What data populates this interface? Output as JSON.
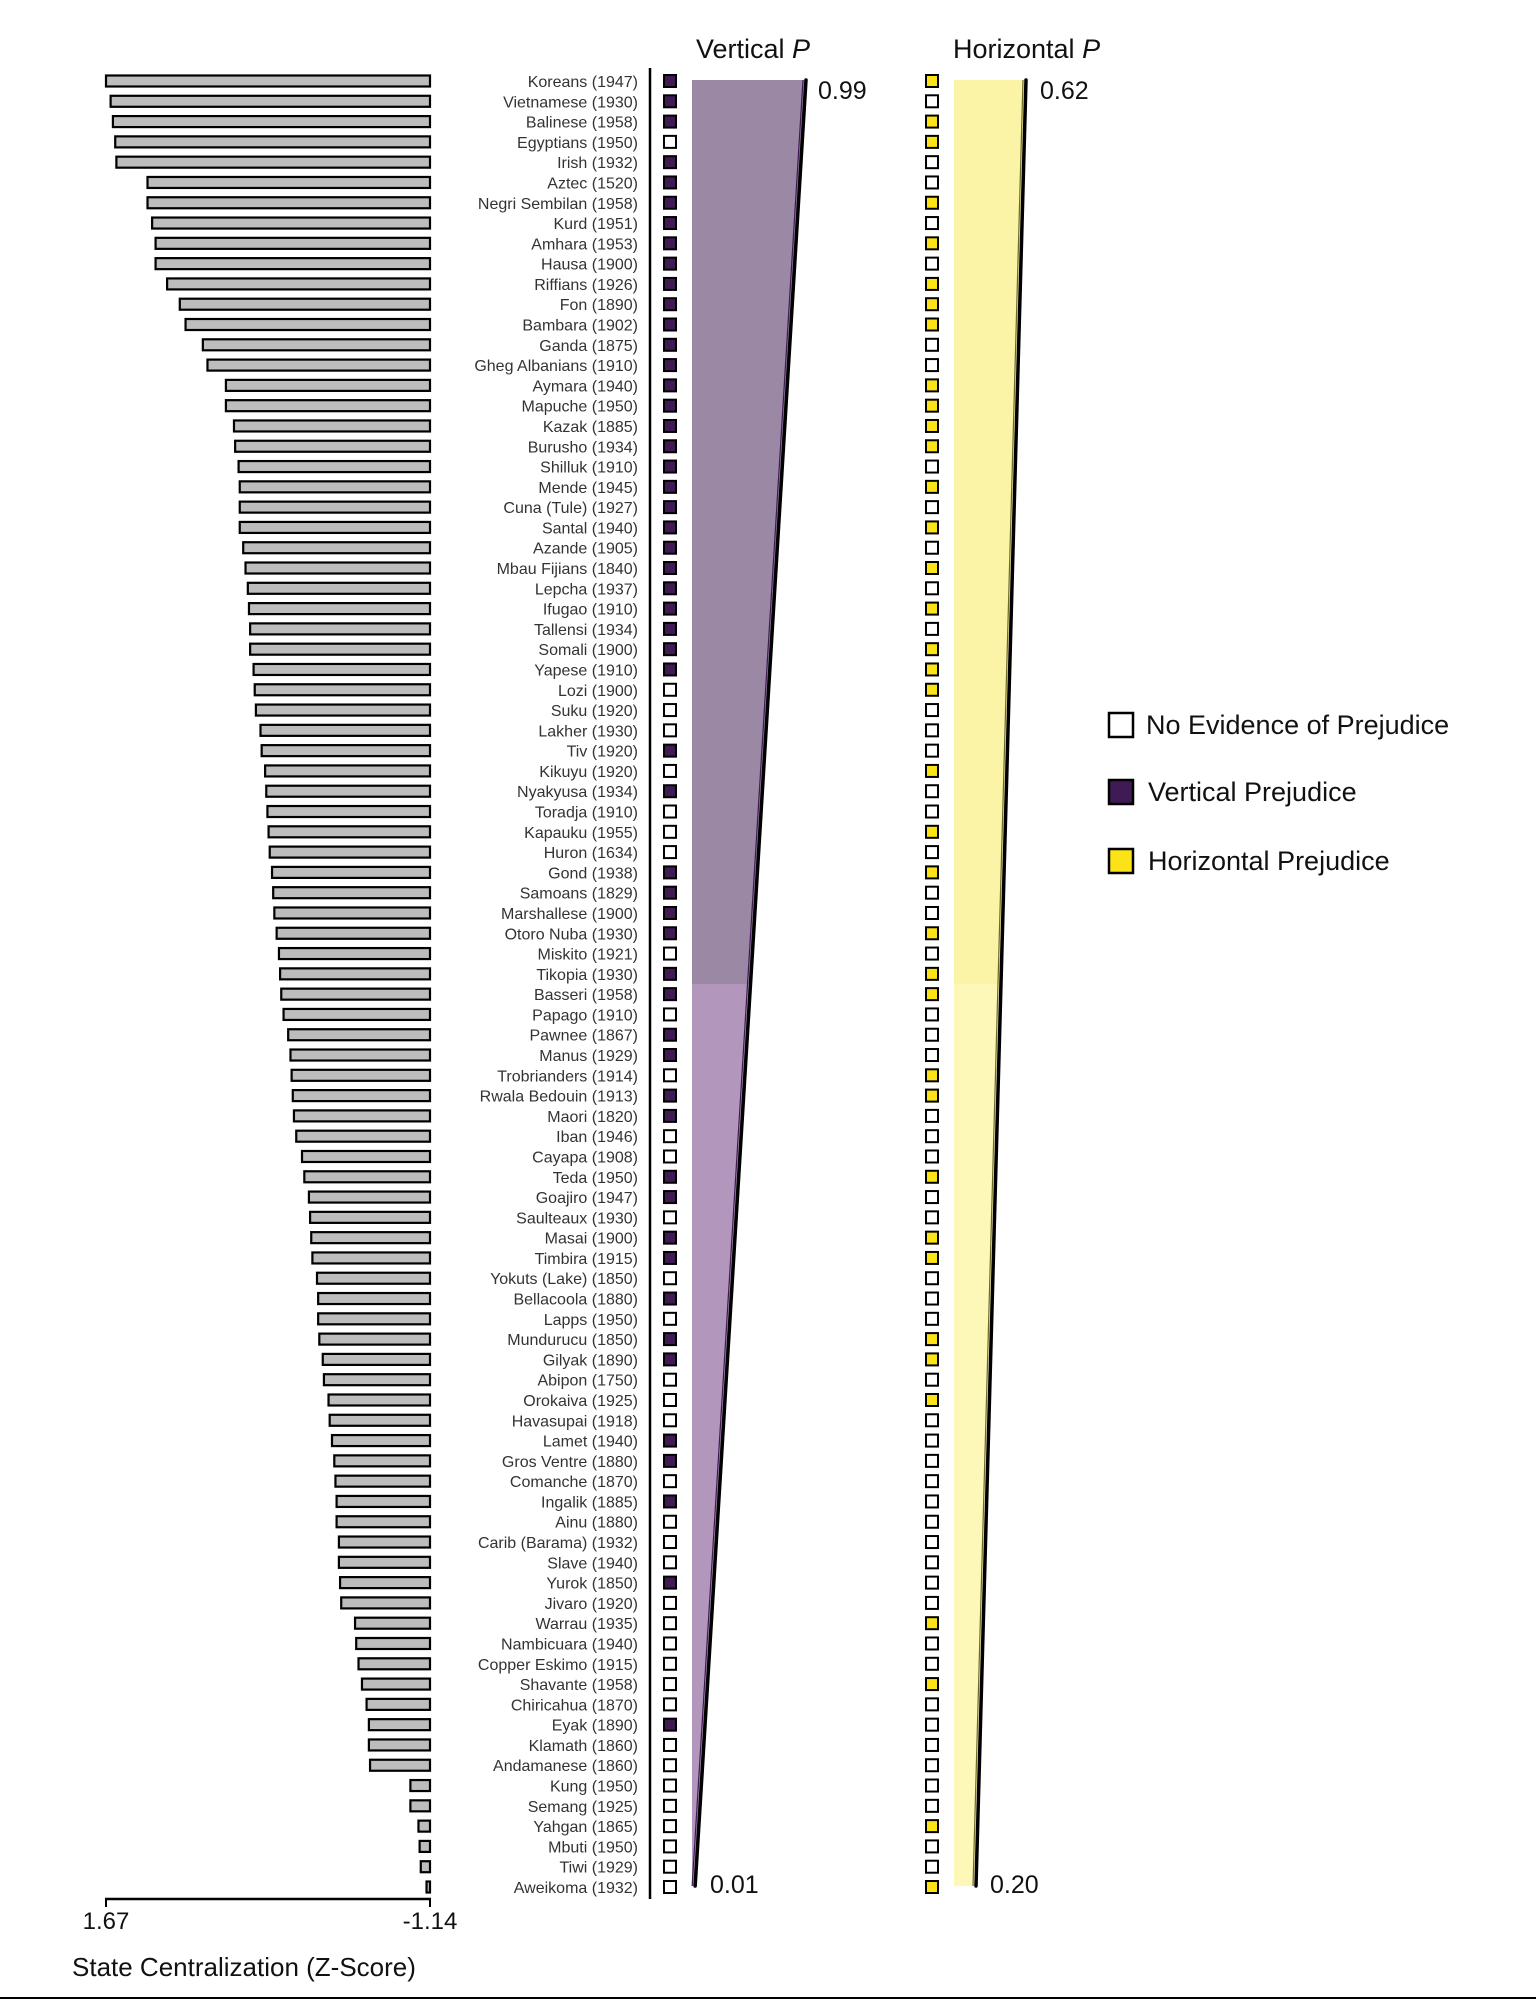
{
  "chart_data": {
    "type": "bar",
    "xlabel": "State Centralization (Z-Score)",
    "x_ticks": [
      "1.67",
      "-1.14"
    ],
    "xlim": [
      1.67,
      -1.14
    ],
    "vertical_title_text": "Vertical ",
    "vertical_title_var": "P",
    "horizontal_title_text": "Horizontal ",
    "horizontal_title_var": "P",
    "vertical_p_range": [
      0.99,
      0.01
    ],
    "vertical_p_labels": [
      "0.99",
      "0.01"
    ],
    "horizontal_p_range": [
      0.62,
      0.2
    ],
    "horizontal_p_labels": [
      "0.62",
      "0.20"
    ],
    "legend": [
      {
        "key": "none",
        "label": "No Evidence of Prejudice",
        "color": "#ffffff"
      },
      {
        "key": "vertical",
        "label": "Vertical Prejudice",
        "color": "#3f1a55"
      },
      {
        "key": "horizontal",
        "label": "Horizontal Prejudice",
        "color": "#fbe317"
      }
    ],
    "colors": {
      "bar_fill": "#bdbdbd",
      "vertical_dark": "#9a88a5",
      "vertical_light": "#b396bb",
      "horizontal_dark": "#fbf3a6",
      "horizontal_light": "#fdf7b8"
    },
    "societies": [
      {
        "name": "Koreans (1947)",
        "z": 1.67,
        "v": 1,
        "h": 1
      },
      {
        "name": "Vietnamese (1930)",
        "z": 1.63,
        "v": 1,
        "h": 0
      },
      {
        "name": "Balinese (1958)",
        "z": 1.61,
        "v": 1,
        "h": 1
      },
      {
        "name": "Egyptians (1950)",
        "z": 1.59,
        "v": 0,
        "h": 1
      },
      {
        "name": "Irish (1932)",
        "z": 1.58,
        "v": 1,
        "h": 0
      },
      {
        "name": "Aztec (1520)",
        "z": 1.31,
        "v": 1,
        "h": 0
      },
      {
        "name": "Negri Sembilan (1958)",
        "z": 1.31,
        "v": 1,
        "h": 1
      },
      {
        "name": "Kurd (1951)",
        "z": 1.27,
        "v": 1,
        "h": 0
      },
      {
        "name": "Amhara (1953)",
        "z": 1.24,
        "v": 1,
        "h": 1
      },
      {
        "name": "Hausa (1900)",
        "z": 1.24,
        "v": 1,
        "h": 0
      },
      {
        "name": "Riffians (1926)",
        "z": 1.14,
        "v": 1,
        "h": 1
      },
      {
        "name": "Fon (1890)",
        "z": 1.03,
        "v": 1,
        "h": 1
      },
      {
        "name": "Bambara (1902)",
        "z": 0.98,
        "v": 1,
        "h": 1
      },
      {
        "name": "Ganda (1875)",
        "z": 0.83,
        "v": 1,
        "h": 0
      },
      {
        "name": "Gheg Albanians (1910)",
        "z": 0.79,
        "v": 1,
        "h": 0
      },
      {
        "name": "Aymara (1940)",
        "z": 0.63,
        "v": 1,
        "h": 1
      },
      {
        "name": "Mapuche (1950)",
        "z": 0.63,
        "v": 1,
        "h": 1
      },
      {
        "name": "Kazak (1885)",
        "z": 0.56,
        "v": 1,
        "h": 1
      },
      {
        "name": "Burusho (1934)",
        "z": 0.55,
        "v": 1,
        "h": 1
      },
      {
        "name": "Shilluk (1910)",
        "z": 0.52,
        "v": 1,
        "h": 0
      },
      {
        "name": "Mende (1945)",
        "z": 0.51,
        "v": 1,
        "h": 1
      },
      {
        "name": "Cuna (Tule) (1927)",
        "z": 0.51,
        "v": 1,
        "h": 0
      },
      {
        "name": "Santal (1940)",
        "z": 0.51,
        "v": 1,
        "h": 1
      },
      {
        "name": "Azande (1905)",
        "z": 0.48,
        "v": 1,
        "h": 0
      },
      {
        "name": "Mbau Fijians (1840)",
        "z": 0.46,
        "v": 1,
        "h": 1
      },
      {
        "name": "Lepcha (1937)",
        "z": 0.44,
        "v": 1,
        "h": 0
      },
      {
        "name": "Ifugao (1910)",
        "z": 0.43,
        "v": 1,
        "h": 1
      },
      {
        "name": "Tallensi (1934)",
        "z": 0.42,
        "v": 1,
        "h": 0
      },
      {
        "name": "Somali (1900)",
        "z": 0.42,
        "v": 1,
        "h": 1
      },
      {
        "name": "Yapese (1910)",
        "z": 0.39,
        "v": 1,
        "h": 1
      },
      {
        "name": "Lozi (1900)",
        "z": 0.38,
        "v": 0,
        "h": 1
      },
      {
        "name": "Suku (1920)",
        "z": 0.37,
        "v": 0,
        "h": 0
      },
      {
        "name": "Lakher (1930)",
        "z": 0.33,
        "v": 0,
        "h": 0
      },
      {
        "name": "Tiv (1920)",
        "z": 0.32,
        "v": 1,
        "h": 0
      },
      {
        "name": "Kikuyu (1920)",
        "z": 0.29,
        "v": 0,
        "h": 1
      },
      {
        "name": "Nyakyusa (1934)",
        "z": 0.28,
        "v": 1,
        "h": 0
      },
      {
        "name": "Toradja (1910)",
        "z": 0.27,
        "v": 0,
        "h": 0
      },
      {
        "name": "Kapauku (1955)",
        "z": 0.26,
        "v": 0,
        "h": 1
      },
      {
        "name": "Huron (1634)",
        "z": 0.25,
        "v": 0,
        "h": 0
      },
      {
        "name": "Gond (1938)",
        "z": 0.23,
        "v": 1,
        "h": 1
      },
      {
        "name": "Samoans (1829)",
        "z": 0.22,
        "v": 1,
        "h": 0
      },
      {
        "name": "Marshallese (1900)",
        "z": 0.21,
        "v": 1,
        "h": 0
      },
      {
        "name": "Otoro Nuba (1930)",
        "z": 0.19,
        "v": 1,
        "h": 1
      },
      {
        "name": "Miskito (1921)",
        "z": 0.17,
        "v": 0,
        "h": 0
      },
      {
        "name": "Tikopia (1930)",
        "z": 0.16,
        "v": 1,
        "h": 1
      },
      {
        "name": "Basseri (1958)",
        "z": 0.15,
        "v": 1,
        "h": 1
      },
      {
        "name": "Papago (1910)",
        "z": 0.13,
        "v": 0,
        "h": 0
      },
      {
        "name": "Pawnee (1867)",
        "z": 0.09,
        "v": 1,
        "h": 0
      },
      {
        "name": "Manus (1929)",
        "z": 0.07,
        "v": 1,
        "h": 0
      },
      {
        "name": "Trobrianders (1914)",
        "z": 0.06,
        "v": 0,
        "h": 1
      },
      {
        "name": "Rwala Bedouin (1913)",
        "z": 0.05,
        "v": 1,
        "h": 1
      },
      {
        "name": "Maori (1820)",
        "z": 0.04,
        "v": 1,
        "h": 0
      },
      {
        "name": "Iban (1946)",
        "z": 0.02,
        "v": 0,
        "h": 0
      },
      {
        "name": "Cayapa (1908)",
        "z": -0.03,
        "v": 0,
        "h": 0
      },
      {
        "name": "Teda (1950)",
        "z": -0.05,
        "v": 1,
        "h": 1
      },
      {
        "name": "Goajiro (1947)",
        "z": -0.09,
        "v": 1,
        "h": 0
      },
      {
        "name": "Saulteaux (1930)",
        "z": -0.1,
        "v": 0,
        "h": 0
      },
      {
        "name": "Masai (1900)",
        "z": -0.11,
        "v": 1,
        "h": 1
      },
      {
        "name": "Timbira (1915)",
        "z": -0.12,
        "v": 1,
        "h": 1
      },
      {
        "name": "Yokuts (Lake) (1850)",
        "z": -0.16,
        "v": 0,
        "h": 0
      },
      {
        "name": "Bellacoola (1880)",
        "z": -0.17,
        "v": 1,
        "h": 0
      },
      {
        "name": "Lapps (1950)",
        "z": -0.17,
        "v": 0,
        "h": 0
      },
      {
        "name": "Mundurucu (1850)",
        "z": -0.18,
        "v": 1,
        "h": 1
      },
      {
        "name": "Gilyak (1890)",
        "z": -0.21,
        "v": 1,
        "h": 1
      },
      {
        "name": "Abipon (1750)",
        "z": -0.22,
        "v": 0,
        "h": 0
      },
      {
        "name": "Orokaiva (1925)",
        "z": -0.26,
        "v": 0,
        "h": 1
      },
      {
        "name": "Havasupai (1918)",
        "z": -0.27,
        "v": 0,
        "h": 0
      },
      {
        "name": "Lamet (1940)",
        "z": -0.29,
        "v": 1,
        "h": 0
      },
      {
        "name": "Gros Ventre (1880)",
        "z": -0.31,
        "v": 1,
        "h": 0
      },
      {
        "name": "Comanche (1870)",
        "z": -0.32,
        "v": 0,
        "h": 0
      },
      {
        "name": "Ingalik (1885)",
        "z": -0.33,
        "v": 1,
        "h": 0
      },
      {
        "name": "Ainu (1880)",
        "z": -0.33,
        "v": 0,
        "h": 0
      },
      {
        "name": "Carib (Barama) (1932)",
        "z": -0.35,
        "v": 0,
        "h": 0
      },
      {
        "name": "Slave (1940)",
        "z": -0.35,
        "v": 0,
        "h": 0
      },
      {
        "name": "Yurok (1850)",
        "z": -0.36,
        "v": 1,
        "h": 0
      },
      {
        "name": "Jivaro (1920)",
        "z": -0.37,
        "v": 0,
        "h": 0
      },
      {
        "name": "Warrau (1935)",
        "z": -0.49,
        "v": 0,
        "h": 1
      },
      {
        "name": "Nambicuara (1940)",
        "z": -0.5,
        "v": 0,
        "h": 0
      },
      {
        "name": "Copper Eskimo (1915)",
        "z": -0.52,
        "v": 0,
        "h": 0
      },
      {
        "name": "Shavante (1958)",
        "z": -0.55,
        "v": 0,
        "h": 1
      },
      {
        "name": "Chiricahua (1870)",
        "z": -0.59,
        "v": 0,
        "h": 0
      },
      {
        "name": "Eyak (1890)",
        "z": -0.61,
        "v": 1,
        "h": 0
      },
      {
        "name": "Klamath (1860)",
        "z": -0.61,
        "v": 0,
        "h": 0
      },
      {
        "name": "Andamanese (1860)",
        "z": -0.62,
        "v": 0,
        "h": 0
      },
      {
        "name": "Kung (1950)",
        "z": -0.97,
        "v": 0,
        "h": 0
      },
      {
        "name": "Semang (1925)",
        "z": -0.97,
        "v": 0,
        "h": 0
      },
      {
        "name": "Yahgan (1865)",
        "z": -1.04,
        "v": 0,
        "h": 1
      },
      {
        "name": "Mbuti (1950)",
        "z": -1.05,
        "v": 0,
        "h": 0
      },
      {
        "name": "Tiwi (1929)",
        "z": -1.06,
        "v": 0,
        "h": 0
      },
      {
        "name": "Aweikoma (1932)",
        "z": -1.11,
        "v": 0,
        "h": 1
      }
    ]
  }
}
